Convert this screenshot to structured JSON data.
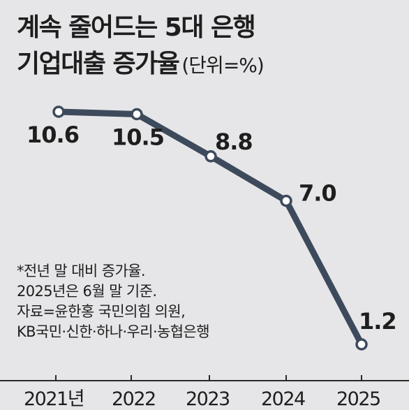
{
  "title": {
    "line1": "계속 줄어드는 5대 은행",
    "line2": "기업대출 증가율",
    "unit": "(단위=%)"
  },
  "notes": [
    "*전년 말 대비 증가율.",
    " 2025년은 6월 말 기준.",
    "자료=윤한홍 국민의힘 의원,",
    "KB국민·신한·하나·우리·농협은행"
  ],
  "colors": {
    "background": "#e6e6e8",
    "line": "#3d4a5c",
    "marker_fill": "#ffffff",
    "text": "#1e1e1e"
  },
  "chart_data": {
    "type": "line",
    "categories": [
      "2021년",
      "2022",
      "2023",
      "2024",
      "2025"
    ],
    "values": [
      10.6,
      10.5,
      8.8,
      7.0,
      1.2
    ],
    "data_labels": [
      "10.6",
      "10.5",
      "8.8",
      "7.0",
      "1.2"
    ],
    "title": "계속 줄어드는 5대 은행 기업대출 증가율",
    "ylim": [
      1.2,
      10.6
    ],
    "grid": false,
    "legend": "none"
  }
}
